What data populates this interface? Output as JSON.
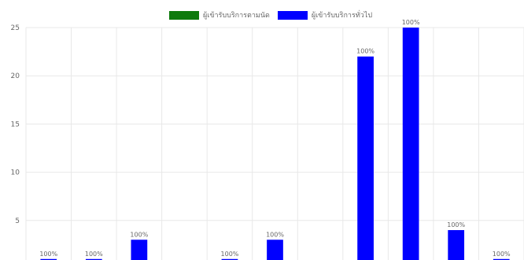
{
  "legend": [
    {
      "label": "ผู้เข้ารับบริการตามนัด",
      "color": "#0e7a0d"
    },
    {
      "label": "ผู้เข้ารับบริการทั่วไป",
      "color": "#0000ff"
    }
  ],
  "chart_data": {
    "type": "bar",
    "categories": [
      "",
      "",
      "",
      "",
      "",
      "",
      "",
      "",
      "",
      "",
      ""
    ],
    "series": [
      {
        "name": "ผู้เข้ารับบริการตามนัด",
        "color": "#0e7a0d",
        "values": [
          0,
          0,
          0,
          0,
          0,
          0,
          0,
          0,
          0,
          0,
          0
        ]
      },
      {
        "name": "ผู้เข้ารับบริการทั่วไป",
        "color": "#0000ff",
        "values": [
          1,
          1,
          3,
          0,
          1,
          3,
          0,
          22,
          25,
          4,
          1
        ]
      }
    ],
    "data_labels": [
      "100%",
      "100%",
      "100%",
      "100%",
      "100%",
      "100%",
      "100%",
      "100%",
      "100%",
      "100%",
      "100%"
    ],
    "y_ticks": [
      "5",
      "10",
      "15",
      "20",
      "25"
    ],
    "ylim": [
      0,
      25
    ],
    "grid": true,
    "legend_position": "top"
  }
}
